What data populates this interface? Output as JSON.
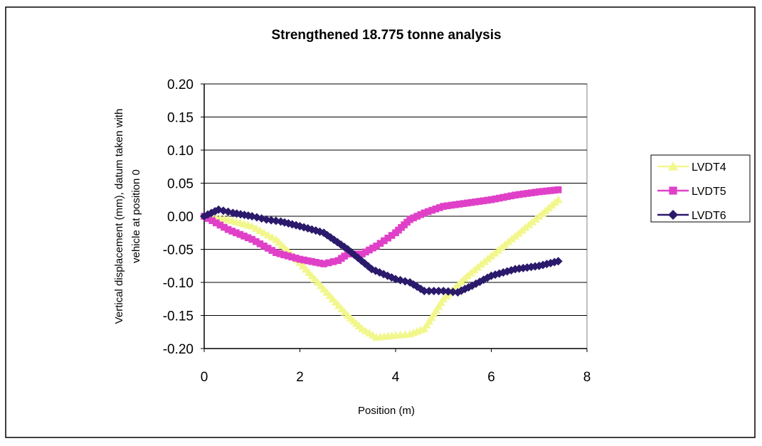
{
  "chart_data": {
    "type": "line",
    "title": "Strengthened 18.775 tonne analysis",
    "xlabel": "Position (m)",
    "ylabel_lines": [
      "Vertical displacement (mm), datum taken with",
      "vehicle at position 0"
    ],
    "xlim": [
      0,
      8
    ],
    "ylim": [
      -0.2,
      0.2
    ],
    "x_ticks": [
      0,
      2,
      4,
      6,
      8
    ],
    "y_ticks": [
      0.2,
      0.15,
      0.1,
      0.05,
      0.0,
      -0.05,
      -0.1,
      -0.15,
      -0.2
    ],
    "x_tick_labels": [
      "0",
      "2",
      "4",
      "6",
      "8"
    ],
    "y_tick_labels": [
      "0.20",
      "0.15",
      "0.10",
      "0.05",
      "0.00",
      "-0.05",
      "-0.10",
      "-0.15",
      "-0.20"
    ],
    "grid": "horizontal",
    "legend_position": "right",
    "series": [
      {
        "name": "LVDT4",
        "color": "#f2f78c",
        "marker": "triangle",
        "x": [
          0,
          0.5,
          1.0,
          1.5,
          2.0,
          2.5,
          3.0,
          3.3,
          3.6,
          4.0,
          4.3,
          4.6,
          5.0,
          5.5,
          6.0,
          6.5,
          7.0,
          7.4
        ],
        "y": [
          0.0,
          -0.005,
          -0.015,
          -0.035,
          -0.07,
          -0.11,
          -0.15,
          -0.17,
          -0.183,
          -0.18,
          -0.178,
          -0.17,
          -0.125,
          -0.09,
          -0.06,
          -0.03,
          0.0,
          0.025
        ]
      },
      {
        "name": "LVDT5",
        "color": "#e040c8",
        "marker": "square",
        "x": [
          0,
          0.5,
          1.0,
          1.5,
          2.0,
          2.5,
          2.8,
          3.0,
          3.3,
          3.6,
          4.0,
          4.3,
          4.6,
          5.0,
          5.5,
          6.0,
          6.5,
          7.0,
          7.4
        ],
        "y": [
          0.0,
          -0.02,
          -0.035,
          -0.055,
          -0.065,
          -0.072,
          -0.067,
          -0.057,
          -0.057,
          -0.045,
          -0.025,
          -0.005,
          0.005,
          0.015,
          0.02,
          0.025,
          0.032,
          0.037,
          0.04
        ]
      },
      {
        "name": "LVDT6",
        "color": "#2b1a6b",
        "marker": "diamond",
        "x": [
          0,
          0.3,
          0.6,
          1.0,
          1.3,
          1.6,
          2.0,
          2.5,
          3.0,
          3.5,
          4.0,
          4.3,
          4.6,
          5.0,
          5.3,
          5.6,
          6.0,
          6.5,
          7.0,
          7.4
        ],
        "y": [
          0.0,
          0.01,
          0.005,
          0.0,
          -0.005,
          -0.008,
          -0.015,
          -0.025,
          -0.05,
          -0.08,
          -0.095,
          -0.1,
          -0.113,
          -0.113,
          -0.115,
          -0.105,
          -0.09,
          -0.08,
          -0.075,
          -0.068
        ]
      }
    ]
  }
}
